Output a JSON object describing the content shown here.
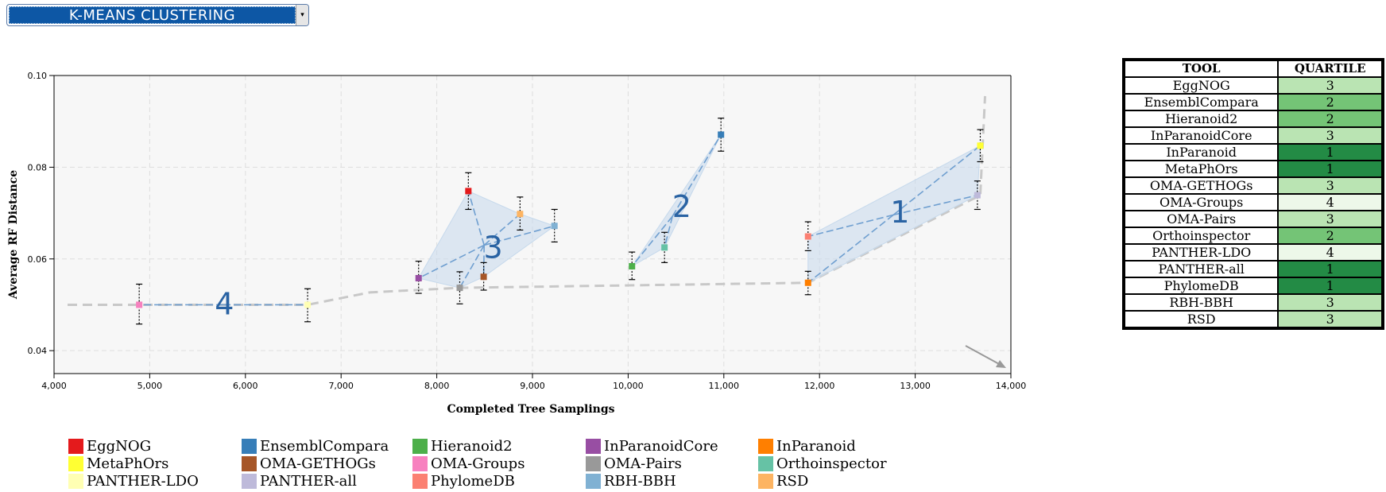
{
  "selector": {
    "label": "K-MEANS CLUSTERING",
    "arrow": "▾"
  },
  "chart_data": {
    "type": "scatter",
    "xlabel": "Completed Tree Samplings",
    "ylabel": "Average RF Distance",
    "xlim": [
      4000,
      14000
    ],
    "ylim": [
      0.035,
      0.1
    ],
    "xticks": [
      4000,
      5000,
      6000,
      7000,
      8000,
      9000,
      10000,
      11000,
      12000,
      13000,
      14000
    ],
    "xtick_labels": [
      "4,000",
      "5,000",
      "6,000",
      "7,000",
      "8,000",
      "9,000",
      "10,000",
      "11,000",
      "12,000",
      "13,000",
      "14,000"
    ],
    "yticks": [
      0.04,
      0.06,
      0.08,
      0.1
    ],
    "ytick_labels": [
      "0.04",
      "0.06",
      "0.08",
      "0.10"
    ],
    "grid": true,
    "points": [
      {
        "name": "EggNOG",
        "x": 8330,
        "y": 0.0748,
        "err": [
          0.0708,
          0.0788
        ],
        "color": "#e41a1c",
        "cluster": 3
      },
      {
        "name": "EnsemblCompara",
        "x": 10970,
        "y": 0.0871,
        "err": [
          0.0835,
          0.0907
        ],
        "color": "#377eb8",
        "cluster": 2
      },
      {
        "name": "Hieranoid2",
        "x": 10040,
        "y": 0.0584,
        "err": [
          0.0555,
          0.0615
        ],
        "color": "#4daf4a",
        "cluster": 2
      },
      {
        "name": "InParanoidCore",
        "x": 7810,
        "y": 0.0558,
        "err": [
          0.0525,
          0.0595
        ],
        "color": "#984ea3",
        "cluster": 3
      },
      {
        "name": "InParanoid",
        "x": 11880,
        "y": 0.0548,
        "err": [
          0.0522,
          0.0573
        ],
        "color": "#ff7f00",
        "cluster": 1
      },
      {
        "name": "MetaPhOrs",
        "x": 13680,
        "y": 0.0847,
        "err": [
          0.0812,
          0.0882
        ],
        "color": "#ffff33",
        "cluster": 1
      },
      {
        "name": "OMA-GETHOGs",
        "x": 8490,
        "y": 0.0561,
        "err": [
          0.0532,
          0.0592
        ],
        "color": "#a65628",
        "cluster": 3
      },
      {
        "name": "OMA-Groups",
        "x": 4890,
        "y": 0.05,
        "err": [
          0.0458,
          0.0545
        ],
        "color": "#f781bf",
        "cluster": 4
      },
      {
        "name": "OMA-Pairs",
        "x": 8240,
        "y": 0.0537,
        "err": [
          0.0502,
          0.0572
        ],
        "color": "#999999",
        "cluster": 3
      },
      {
        "name": "Orthoinspector",
        "x": 10380,
        "y": 0.0625,
        "err": [
          0.0592,
          0.0658
        ],
        "color": "#66c2a5",
        "cluster": 2
      },
      {
        "name": "PANTHER-LDO",
        "x": 6650,
        "y": 0.05,
        "err": [
          0.0463,
          0.0535
        ],
        "color": "#ffffb3",
        "cluster": 4
      },
      {
        "name": "PANTHER-all",
        "x": 13650,
        "y": 0.0739,
        "err": [
          0.0708,
          0.077
        ],
        "color": "#bebada",
        "cluster": 1
      },
      {
        "name": "PhylomeDB",
        "x": 11880,
        "y": 0.0649,
        "err": [
          0.0618,
          0.0681
        ],
        "color": "#fb8072",
        "cluster": 1
      },
      {
        "name": "RBH-BBH",
        "x": 9230,
        "y": 0.0672,
        "err": [
          0.0637,
          0.0708
        ],
        "color": "#80b1d3",
        "cluster": 3
      },
      {
        "name": "RSD",
        "x": 8870,
        "y": 0.0698,
        "err": [
          0.0663,
          0.0735
        ],
        "color": "#fdb462",
        "cluster": 3
      }
    ],
    "clusters": [
      {
        "label": "1",
        "label_x": 12840,
        "label_y": 0.0702,
        "centroid": [
          12772,
          0.0696
        ],
        "members": [
          "InParanoid",
          "MetaPhOrs",
          "PANTHER-all",
          "PhylomeDB"
        ],
        "hull": [
          "InParanoid",
          "PhylomeDB",
          "MetaPhOrs",
          "PANTHER-all"
        ]
      },
      {
        "label": "2",
        "label_x": 10560,
        "label_y": 0.0714,
        "centroid": [
          10463,
          0.0693
        ],
        "members": [
          "EnsemblCompara",
          "Hieranoid2",
          "Orthoinspector"
        ],
        "hull": [
          "Hieranoid2",
          "EnsemblCompara",
          "Orthoinspector"
        ]
      },
      {
        "label": "3",
        "label_x": 8590,
        "label_y": 0.0625,
        "centroid": [
          8495,
          0.063
        ],
        "members": [
          "EggNOG",
          "InParanoidCore",
          "OMA-GETHOGs",
          "OMA-Pairs",
          "RBH-BBH",
          "RSD"
        ],
        "hull": [
          "InParanoidCore",
          "EggNOG",
          "RSD",
          "RBH-BBH",
          "OMA-GETHOGs",
          "OMA-Pairs"
        ]
      },
      {
        "label": "4",
        "label_x": 5780,
        "label_y": 0.0502,
        "centroid": [
          5770,
          0.05
        ],
        "members": [
          "OMA-Groups",
          "PANTHER-LDO"
        ],
        "hull": [
          "OMA-Groups",
          "PANTHER-LDO"
        ]
      }
    ],
    "pareto_frontier": [
      [
        3800,
        0.05
      ],
      [
        6650,
        0.05
      ],
      [
        7300,
        0.0527
      ],
      [
        8240,
        0.0537
      ],
      [
        11880,
        0.0548
      ],
      [
        13680,
        0.0739
      ],
      [
        13730,
        0.0955
      ]
    ],
    "arrow_direction": "bottom-right"
  },
  "legend": [
    {
      "name": "EggNOG",
      "color": "#e41a1c"
    },
    {
      "name": "EnsemblCompara",
      "color": "#377eb8"
    },
    {
      "name": "Hieranoid2",
      "color": "#4daf4a"
    },
    {
      "name": "InParanoidCore",
      "color": "#984ea3"
    },
    {
      "name": "InParanoid",
      "color": "#ff7f00"
    },
    {
      "name": "MetaPhOrs",
      "color": "#ffff33"
    },
    {
      "name": "OMA-GETHOGs",
      "color": "#a65628"
    },
    {
      "name": "OMA-Groups",
      "color": "#f781bf"
    },
    {
      "name": "OMA-Pairs",
      "color": "#999999"
    },
    {
      "name": "Orthoinspector",
      "color": "#66c2a5"
    },
    {
      "name": "PANTHER-LDO",
      "color": "#ffffb3"
    },
    {
      "name": "PANTHER-all",
      "color": "#bebada"
    },
    {
      "name": "PhylomeDB",
      "color": "#fb8072"
    },
    {
      "name": "RBH-BBH",
      "color": "#80b1d3"
    },
    {
      "name": "RSD",
      "color": "#fdb462"
    }
  ],
  "table": {
    "headers": [
      "TOOL",
      "QUARTILE"
    ],
    "quartile_colors": {
      "1": "#238b45",
      "2": "#74c476",
      "3": "#bae4b3",
      "4": "#edf8e9"
    },
    "rows": [
      {
        "tool": "EggNOG",
        "quartile": "3"
      },
      {
        "tool": "EnsemblCompara",
        "quartile": "2"
      },
      {
        "tool": "Hieranoid2",
        "quartile": "2"
      },
      {
        "tool": "InParanoidCore",
        "quartile": "3"
      },
      {
        "tool": "InParanoid",
        "quartile": "1"
      },
      {
        "tool": "MetaPhOrs",
        "quartile": "1"
      },
      {
        "tool": "OMA-GETHOGs",
        "quartile": "3"
      },
      {
        "tool": "OMA-Groups",
        "quartile": "4"
      },
      {
        "tool": "OMA-Pairs",
        "quartile": "3"
      },
      {
        "tool": "Orthoinspector",
        "quartile": "2"
      },
      {
        "tool": "PANTHER-LDO",
        "quartile": "4"
      },
      {
        "tool": "PANTHER-all",
        "quartile": "1"
      },
      {
        "tool": "PhylomeDB",
        "quartile": "1"
      },
      {
        "tool": "RBH-BBH",
        "quartile": "3"
      },
      {
        "tool": "RSD",
        "quartile": "3"
      }
    ]
  }
}
